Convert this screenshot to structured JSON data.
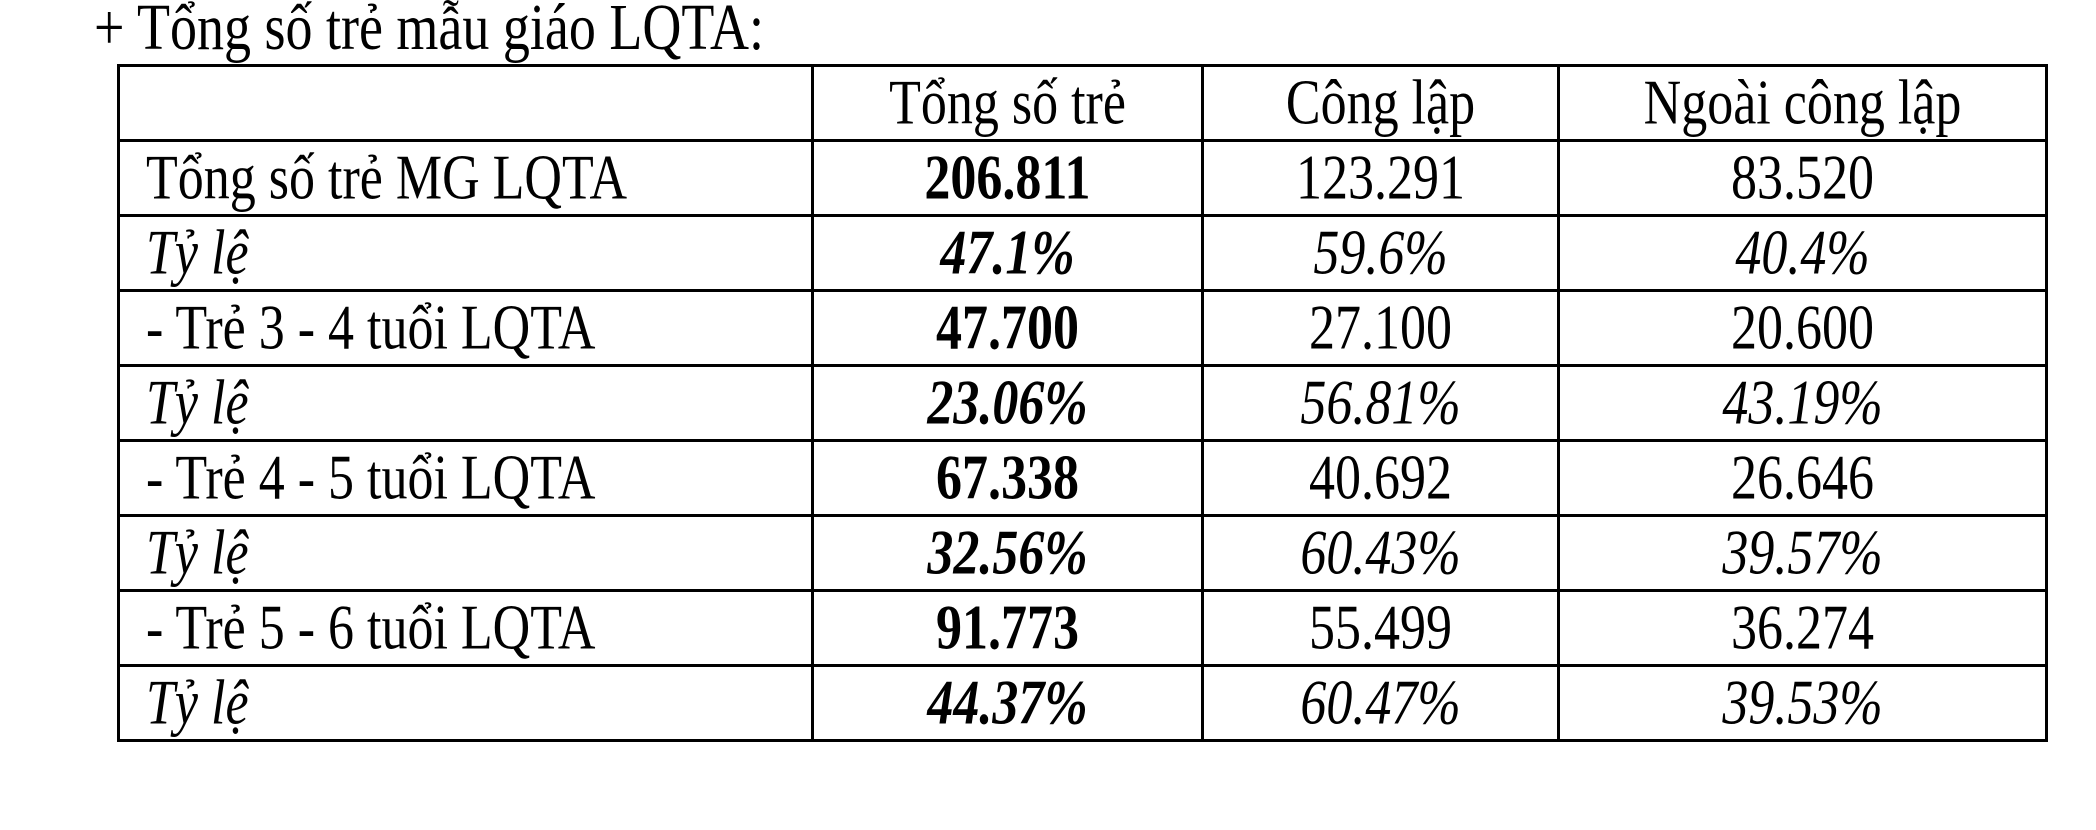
{
  "title": "+ Tổng số trẻ mẫu giáo LQTA:",
  "table": {
    "headers": [
      "",
      "Tổng số trẻ",
      "Công lập",
      "Ngoài công lập"
    ],
    "rows": [
      {
        "label": "Tổng số trẻ MG LQTA",
        "total": "206.811",
        "public": "123.291",
        "nonpublic": "83.520"
      },
      {
        "label": "Tỷ lệ",
        "total": "47.1%",
        "public": "59.6%",
        "nonpublic": "40.4%"
      },
      {
        "label": "- Trẻ 3 - 4 tuổi LQTA",
        "total": "47.700",
        "public": "27.100",
        "nonpublic": "20.600"
      },
      {
        "label": "Tỷ lệ",
        "total": "23.06%",
        "public": "56.81%",
        "nonpublic": "43.19%"
      },
      {
        "label": "- Trẻ 4 - 5 tuổi LQTA",
        "total": "67.338",
        "public": "40.692",
        "nonpublic": "26.646"
      },
      {
        "label": "Tỷ lệ",
        "total": "32.56%",
        "public": "60.43%",
        "nonpublic": "39.57%"
      },
      {
        "label": "- Trẻ 5 - 6 tuổi LQTA",
        "total": "91.773",
        "public": "55.499",
        "nonpublic": "36.274"
      },
      {
        "label": "Tỷ lệ",
        "total": "44.37%",
        "public": "60.47%",
        "nonpublic": "39.53%"
      }
    ]
  }
}
